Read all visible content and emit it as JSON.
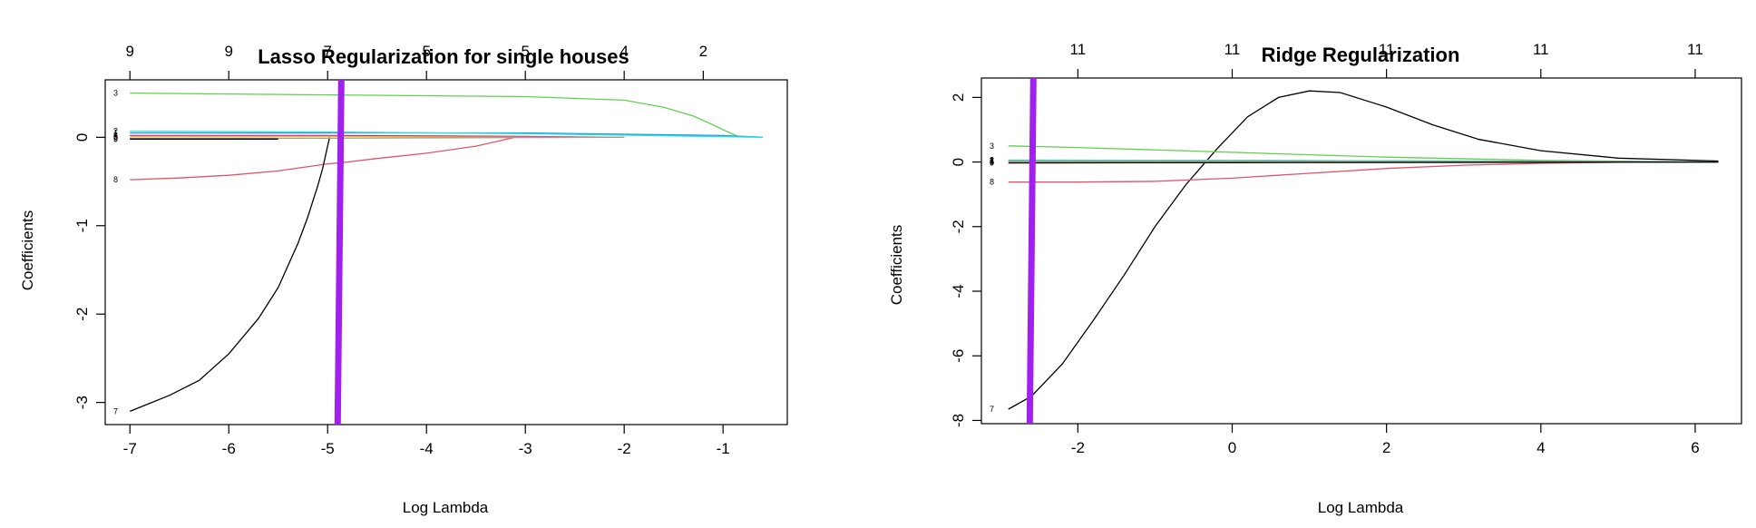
{
  "chart_data": [
    {
      "type": "line",
      "title": "Lasso Regularization for single houses",
      "xlabel": "Log Lambda",
      "ylabel": "Coefficients",
      "xlim": [
        -7.25,
        -0.35
      ],
      "ylim": [
        -3.25,
        0.65
      ],
      "x_ticks": [
        -7,
        -6,
        -5,
        -4,
        -3,
        -2,
        -1
      ],
      "y_ticks": [
        -3,
        -2,
        -1,
        0
      ],
      "top_axis": {
        "x": [
          -7,
          -6,
          -5,
          -4,
          -3,
          -2,
          -1.2
        ],
        "labels": [
          "9",
          "9",
          "7",
          "5",
          "5",
          "4",
          "2"
        ]
      },
      "vline": {
        "x": -4.88,
        "color": "#a020f0"
      },
      "series": [
        {
          "label": "3",
          "color": "#61d04f",
          "x": [
            -7,
            -6,
            -5,
            -4,
            -3,
            -2,
            -1.6,
            -1.3,
            -1.1,
            -0.95,
            -0.85,
            -0.6
          ],
          "y": [
            0.5,
            0.49,
            0.48,
            0.47,
            0.46,
            0.42,
            0.34,
            0.24,
            0.14,
            0.06,
            0.01,
            0.0
          ]
        },
        {
          "label": "8",
          "color": "#df536b",
          "x": [
            -7,
            -6.5,
            -6,
            -5.5,
            -5,
            -4.8,
            -4.5,
            -4,
            -3.5,
            -3.1,
            -2.5,
            -2
          ],
          "y": [
            -0.48,
            -0.46,
            -0.43,
            -0.38,
            -0.3,
            -0.28,
            -0.24,
            -0.18,
            -0.1,
            0.0,
            0.0,
            0.0
          ]
        },
        {
          "label": "7",
          "color": "#000000",
          "x": [
            -7,
            -6.6,
            -6.3,
            -6,
            -5.7,
            -5.5,
            -5.3,
            -5.2,
            -5.1,
            -5.05,
            -5.0,
            -4.98
          ],
          "y": [
            -3.1,
            -2.92,
            -2.75,
            -2.45,
            -2.05,
            -1.7,
            -1.2,
            -0.9,
            -0.55,
            -0.35,
            -0.1,
            0.0
          ]
        },
        {
          "label": "1",
          "color": "#2297e6",
          "x": [
            -7,
            -5,
            -3,
            -1,
            -0.6
          ],
          "y": [
            0.05,
            0.05,
            0.05,
            0.02,
            0.0
          ]
        },
        {
          "label": "2",
          "color": "#28e2e5",
          "x": [
            -7,
            -5,
            -3,
            -0.6
          ],
          "y": [
            0.07,
            0.06,
            0.04,
            0.0
          ]
        },
        {
          "label": "4",
          "color": "#cd0bbc",
          "x": [
            -7,
            -5,
            -3,
            -2
          ],
          "y": [
            0.02,
            0.02,
            0.01,
            0.0
          ]
        },
        {
          "label": "5",
          "color": "#f5c710",
          "x": [
            -7,
            -5,
            -3,
            -2
          ],
          "y": [
            0.01,
            0.01,
            0.0,
            0.0
          ]
        },
        {
          "label": "6",
          "color": "#9e9e9e",
          "x": [
            -7,
            -5,
            -2
          ],
          "y": [
            -0.01,
            -0.01,
            0.0
          ]
        },
        {
          "label": "9",
          "color": "#000000",
          "x": [
            -7,
            -6,
            -5.5
          ],
          "y": [
            -0.02,
            -0.02,
            -0.02
          ]
        }
      ]
    },
    {
      "type": "line",
      "title": "Ridge Regularization",
      "xlabel": "Log Lambda",
      "ylabel": "Coefficients",
      "xlim": [
        -3.25,
        6.6
      ],
      "ylim": [
        -8.1,
        2.6
      ],
      "x_ticks": [
        -2,
        0,
        2,
        4,
        6
      ],
      "y_ticks": [
        -8,
        -6,
        -4,
        -2,
        0,
        2
      ],
      "top_axis": {
        "x": [
          -2,
          0,
          2,
          4,
          6
        ],
        "labels": [
          "11",
          "11",
          "11",
          "11",
          "11"
        ]
      },
      "vline": {
        "x": -2.6,
        "color": "#a020f0"
      },
      "series": [
        {
          "label": "7",
          "color": "#000000",
          "x": [
            -2.9,
            -2.6,
            -2.2,
            -1.8,
            -1.4,
            -1.0,
            -0.6,
            -0.2,
            0.2,
            0.6,
            1.0,
            1.4,
            2.0,
            2.6,
            3.2,
            4.0,
            5.0,
            6.3
          ],
          "y": [
            -7.65,
            -7.25,
            -6.25,
            -4.9,
            -3.5,
            -2.0,
            -0.7,
            0.4,
            1.4,
            2.0,
            2.2,
            2.15,
            1.7,
            1.15,
            0.7,
            0.35,
            0.12,
            0.03
          ]
        },
        {
          "label": "3",
          "color": "#61d04f",
          "x": [
            -2.9,
            -2,
            0,
            2,
            4,
            6.3
          ],
          "y": [
            0.5,
            0.45,
            0.3,
            0.15,
            0.05,
            0.0
          ]
        },
        {
          "label": "8",
          "color": "#df536b",
          "x": [
            -2.9,
            -2,
            -1,
            0,
            1,
            2,
            3,
            4,
            5,
            6.3
          ],
          "y": [
            -0.62,
            -0.62,
            -0.6,
            -0.5,
            -0.35,
            -0.2,
            -0.1,
            -0.04,
            -0.01,
            0.0
          ]
        },
        {
          "label": "1",
          "color": "#2297e6",
          "x": [
            -2.9,
            0,
            3,
            6.3
          ],
          "y": [
            0.05,
            0.05,
            0.03,
            0.0
          ]
        },
        {
          "label": "2",
          "color": "#28e2e5",
          "x": [
            -2.9,
            0,
            3,
            6.3
          ],
          "y": [
            0.06,
            0.05,
            0.03,
            0.0
          ]
        },
        {
          "label": "4",
          "color": "#cd0bbc",
          "x": [
            -2.9,
            0,
            6.3
          ],
          "y": [
            0.02,
            0.02,
            0.0
          ]
        },
        {
          "label": "5",
          "color": "#f5c710",
          "x": [
            -2.9,
            0,
            6.3
          ],
          "y": [
            0.01,
            0.01,
            0.0
          ]
        },
        {
          "label": "6",
          "color": "#9e9e9e",
          "x": [
            -2.9,
            0,
            6.3
          ],
          "y": [
            -0.01,
            -0.01,
            0.0
          ]
        },
        {
          "label": "9",
          "color": "#000000",
          "x": [
            -2.9,
            0,
            6.3
          ],
          "y": [
            -0.03,
            -0.02,
            0.0
          ]
        }
      ]
    }
  ]
}
